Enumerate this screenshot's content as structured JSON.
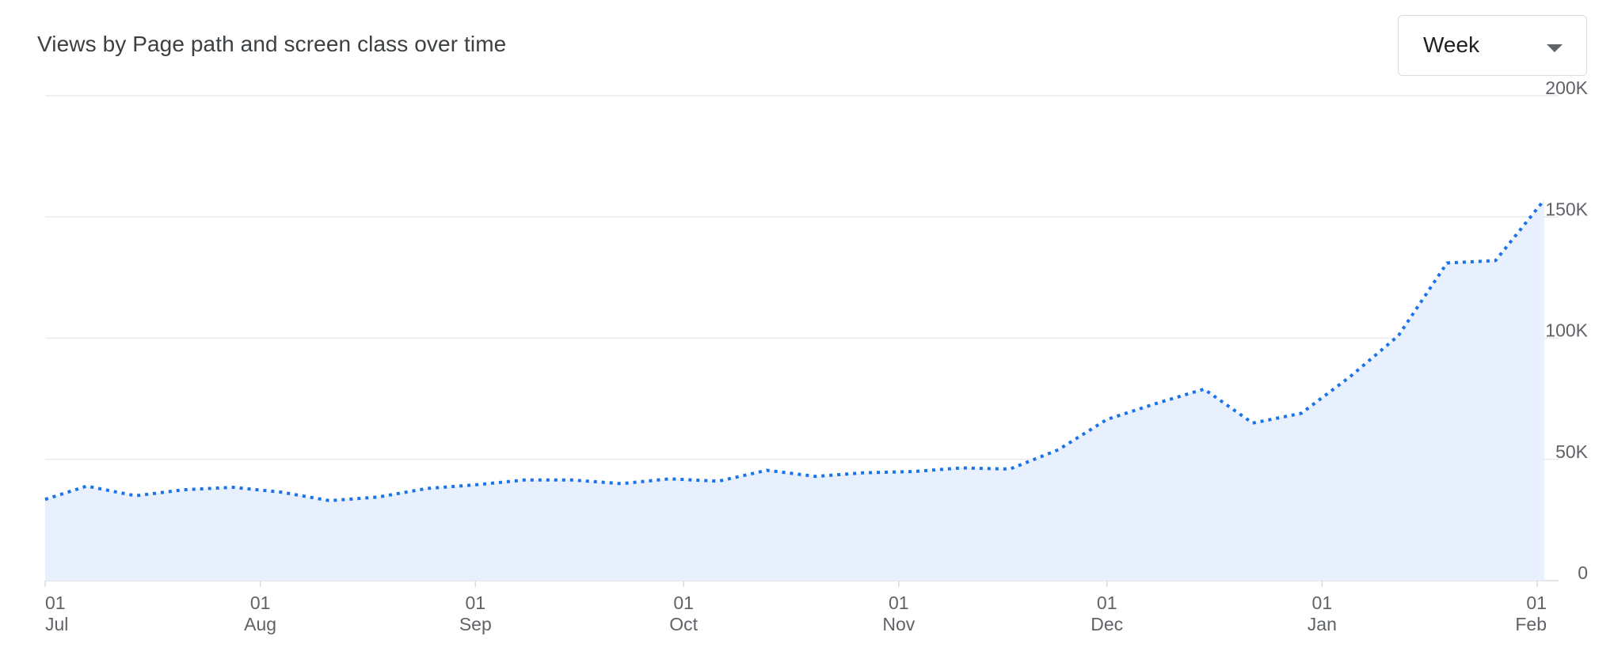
{
  "title": "Views by Page path and screen class over time",
  "period_select": {
    "value": "Week",
    "icon": "arrow-drop-down-icon"
  },
  "colors": {
    "line": "#1a73e8",
    "area": "#e8f0fe",
    "grid": "#e8eaed",
    "text": "#5f6368"
  },
  "chart_data": {
    "type": "area",
    "style": "dotted line with shaded area",
    "y_axis_position": "right",
    "ylim": [
      0,
      200000
    ],
    "y_ticks": [
      {
        "value": 0,
        "label": "0"
      },
      {
        "value": 50000,
        "label": "50K"
      },
      {
        "value": 100000,
        "label": "100K"
      },
      {
        "value": 150000,
        "label": "150K"
      },
      {
        "value": 200000,
        "label": "200K"
      }
    ],
    "xlim": [
      "2023-07-01",
      "2024-02-01"
    ],
    "x_ticks": [
      {
        "date": "2023-07-01",
        "day": "01",
        "month": "Jul"
      },
      {
        "date": "2023-08-01",
        "day": "01",
        "month": "Aug"
      },
      {
        "date": "2023-09-01",
        "day": "01",
        "month": "Sep"
      },
      {
        "date": "2023-10-01",
        "day": "01",
        "month": "Oct"
      },
      {
        "date": "2023-11-01",
        "day": "01",
        "month": "Nov"
      },
      {
        "date": "2023-12-01",
        "day": "01",
        "month": "Dec"
      },
      {
        "date": "2024-01-01",
        "day": "01",
        "month": "Jan"
      },
      {
        "date": "2024-02-01",
        "day": "01",
        "month": "Feb"
      }
    ],
    "grid": true,
    "series": [
      {
        "points": [
          {
            "x": "2023-07-01",
            "y": 33500
          },
          {
            "x": "2023-07-07",
            "y": 39000
          },
          {
            "x": "2023-07-14",
            "y": 35000
          },
          {
            "x": "2023-07-21",
            "y": 37500
          },
          {
            "x": "2023-07-28",
            "y": 38500
          },
          {
            "x": "2023-08-04",
            "y": 36500
          },
          {
            "x": "2023-08-11",
            "y": 33000
          },
          {
            "x": "2023-08-18",
            "y": 34500
          },
          {
            "x": "2023-08-25",
            "y": 38000
          },
          {
            "x": "2023-09-01",
            "y": 39500
          },
          {
            "x": "2023-09-08",
            "y": 41500
          },
          {
            "x": "2023-09-15",
            "y": 41500
          },
          {
            "x": "2023-09-22",
            "y": 40000
          },
          {
            "x": "2023-09-29",
            "y": 42000
          },
          {
            "x": "2023-10-06",
            "y": 41000
          },
          {
            "x": "2023-10-13",
            "y": 45500
          },
          {
            "x": "2023-10-20",
            "y": 43000
          },
          {
            "x": "2023-10-27",
            "y": 44500
          },
          {
            "x": "2023-11-03",
            "y": 45000
          },
          {
            "x": "2023-11-10",
            "y": 46500
          },
          {
            "x": "2023-11-17",
            "y": 46000
          },
          {
            "x": "2023-11-24",
            "y": 54000
          },
          {
            "x": "2023-12-01",
            "y": 66500
          },
          {
            "x": "2023-12-08",
            "y": 73000
          },
          {
            "x": "2023-12-15",
            "y": 79000
          },
          {
            "x": "2023-12-22",
            "y": 65000
          },
          {
            "x": "2023-12-29",
            "y": 69000
          },
          {
            "x": "2024-01-05",
            "y": 84000
          },
          {
            "x": "2024-01-12",
            "y": 101000
          },
          {
            "x": "2024-01-19",
            "y": 131000
          },
          {
            "x": "2024-01-26",
            "y": 132000
          },
          {
            "x": "2024-02-02",
            "y": 157000
          }
        ]
      }
    ]
  }
}
